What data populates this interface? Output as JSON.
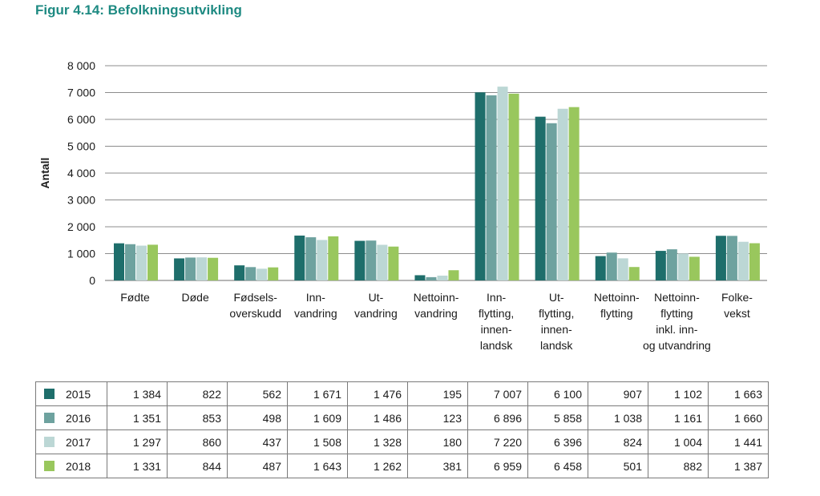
{
  "title": "Figur 4.14: Befolkningsutvikling",
  "chart_data": {
    "type": "bar",
    "ylabel": "Antall",
    "ylim": [
      0,
      8000
    ],
    "yticks": [
      0,
      1000,
      2000,
      3000,
      4000,
      5000,
      6000,
      7000,
      8000
    ],
    "ytick_labels": [
      "0",
      "1 000",
      "2 000",
      "3 000",
      "4 000",
      "5 000",
      "6 000",
      "7 000",
      "8 000"
    ],
    "grid": true,
    "categories": [
      [
        "Fødte"
      ],
      [
        "Døde"
      ],
      [
        "Fødsels-",
        "overskudd"
      ],
      [
        "Inn-",
        "vandring"
      ],
      [
        "Ut-",
        "vandring"
      ],
      [
        "Nettoinn-",
        "vandring"
      ],
      [
        "Inn-",
        "flytting,",
        "innen-",
        "landsk"
      ],
      [
        "Ut-",
        "flytting,",
        "innen-",
        "landsk"
      ],
      [
        "Nettoinn-",
        "flytting"
      ],
      [
        "Nettoinn-",
        "flytting",
        "inkl. inn-",
        "og utvandring"
      ],
      [
        "Folke-",
        "vekst"
      ]
    ],
    "series": [
      {
        "name": "2015",
        "color": "#1e6e6b",
        "values": [
          1384,
          822,
          562,
          1671,
          1476,
          195,
          7007,
          6100,
          907,
          1102,
          1663
        ],
        "labels": [
          "1 384",
          "822",
          "562",
          "1 671",
          "1 476",
          "195",
          "7 007",
          "6 100",
          "907",
          "1 102",
          "1 663"
        ]
      },
      {
        "name": "2016",
        "color": "#6ea29f",
        "values": [
          1351,
          853,
          498,
          1609,
          1486,
          123,
          6896,
          5858,
          1038,
          1161,
          1660
        ],
        "labels": [
          "1 351",
          "853",
          "498",
          "1 609",
          "1 486",
          "123",
          "6 896",
          "5 858",
          "1 038",
          "1 161",
          "1 660"
        ]
      },
      {
        "name": "2017",
        "color": "#bcd7d5",
        "values": [
          1297,
          860,
          437,
          1508,
          1328,
          180,
          7220,
          6396,
          824,
          1004,
          1441
        ],
        "labels": [
          "1 297",
          "860",
          "437",
          "1 508",
          "1 328",
          "180",
          "7 220",
          "6 396",
          "824",
          "1 004",
          "1 441"
        ]
      },
      {
        "name": "2018",
        "color": "#99c75d",
        "values": [
          1331,
          844,
          487,
          1643,
          1262,
          381,
          6959,
          6458,
          501,
          882,
          1387
        ],
        "labels": [
          "1 331",
          "844",
          "487",
          "1 643",
          "1 262",
          "381",
          "6 959",
          "6 458",
          "501",
          "882",
          "1 387"
        ]
      }
    ]
  }
}
